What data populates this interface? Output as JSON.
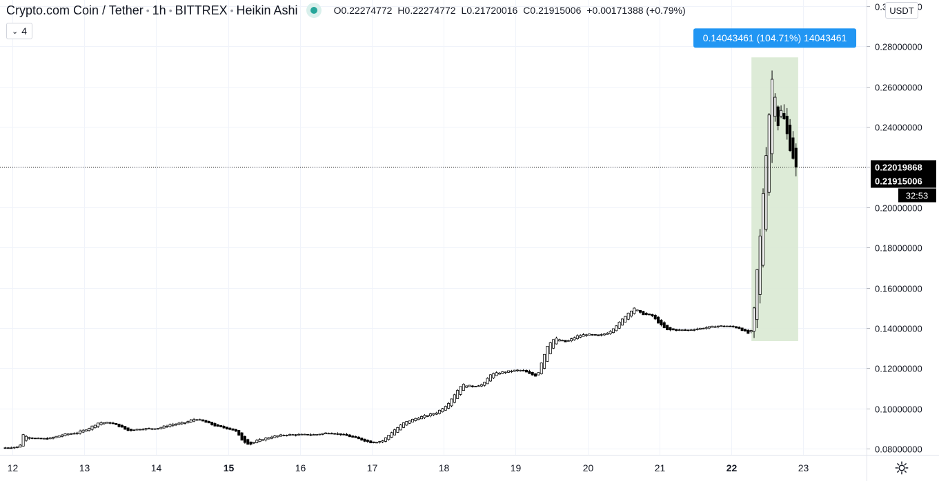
{
  "header": {
    "symbol": "Crypto.com Coin / Tether",
    "interval": "1h",
    "exchange": "BITTREX",
    "chart_style": "Heikin Ashi",
    "ohlc": {
      "o_label": "O",
      "o_value": "0.22274772",
      "h_label": "H",
      "h_value": "0.22274772",
      "l_label": "L",
      "l_value": "0.21720016",
      "c_label": "C",
      "c_value": "0.21915006",
      "change": "+0.00171388 (+0.79%)"
    },
    "status_color": "#26a69a"
  },
  "indicator_button": {
    "count": "4",
    "icon": "chevron-down-icon"
  },
  "currency_button": {
    "label": "USDT"
  },
  "settings": {
    "icon": "gear-icon"
  },
  "chart_data": {
    "type": "candlestick",
    "style": "heikin-ashi",
    "price_axis": {
      "range": [
        0.077,
        0.303
      ],
      "ticks": [
        "0.30000000",
        "0.28000000",
        "0.26000000",
        "0.24000000",
        "0.22000000",
        "0.20000000",
        "0.18000000",
        "0.16000000",
        "0.14000000",
        "0.12000000",
        "0.10000000",
        "0.08000000"
      ],
      "tick_values": [
        0.3,
        0.28,
        0.26,
        0.24,
        0.22,
        0.2,
        0.18,
        0.16,
        0.14,
        0.12,
        0.1,
        0.08
      ]
    },
    "time_axis": {
      "range_days": [
        11.9,
        23.7
      ],
      "ticks": [
        {
          "label": "12",
          "day": 12,
          "bold": false
        },
        {
          "label": "13",
          "day": 13,
          "bold": false
        },
        {
          "label": "14",
          "day": 14,
          "bold": false
        },
        {
          "label": "15",
          "day": 15,
          "bold": true
        },
        {
          "label": "16",
          "day": 16,
          "bold": false
        },
        {
          "label": "17",
          "day": 17,
          "bold": false
        },
        {
          "label": "18",
          "day": 18,
          "bold": false
        },
        {
          "label": "19",
          "day": 19,
          "bold": false
        },
        {
          "label": "20",
          "day": 20,
          "bold": false
        },
        {
          "label": "21",
          "day": 21,
          "bold": false
        },
        {
          "label": "22",
          "day": 22,
          "bold": true
        },
        {
          "label": "23",
          "day": 23,
          "bold": false
        }
      ]
    },
    "grid": true,
    "current_price": {
      "value": 0.21915006,
      "label": "0.21915006",
      "countdown": "32:53",
      "color": "#000000"
    },
    "crosshair_price": {
      "value": 0.22019868,
      "label": "0.22019868"
    },
    "measure": {
      "day_start": 22.28,
      "day_end": 22.93,
      "price_low": 0.1335,
      "price_high": 0.2745,
      "label": "0.14043461 (104.71%) 14043461",
      "fill": "#d9e9d3",
      "label_color": "#2196f3"
    },
    "price_path": [
      [
        11.9,
        0.0805
      ],
      [
        12.1,
        0.081
      ],
      [
        12.15,
        0.087
      ],
      [
        12.3,
        0.085
      ],
      [
        12.5,
        0.085
      ],
      [
        12.7,
        0.087
      ],
      [
        12.9,
        0.088
      ],
      [
        13.05,
        0.09
      ],
      [
        13.2,
        0.093
      ],
      [
        13.35,
        0.093
      ],
      [
        13.5,
        0.091
      ],
      [
        13.6,
        0.089
      ],
      [
        13.8,
        0.09
      ],
      [
        14.0,
        0.09
      ],
      [
        14.2,
        0.092
      ],
      [
        14.4,
        0.093
      ],
      [
        14.55,
        0.095
      ],
      [
        14.7,
        0.093
      ],
      [
        14.85,
        0.091
      ],
      [
        15.0,
        0.09
      ],
      [
        15.1,
        0.089
      ],
      [
        15.2,
        0.084
      ],
      [
        15.3,
        0.082
      ],
      [
        15.4,
        0.084
      ],
      [
        15.6,
        0.086
      ],
      [
        15.8,
        0.087
      ],
      [
        16.0,
        0.087
      ],
      [
        16.2,
        0.087
      ],
      [
        16.4,
        0.088
      ],
      [
        16.6,
        0.087
      ],
      [
        16.8,
        0.085
      ],
      [
        17.0,
        0.083
      ],
      [
        17.15,
        0.084
      ],
      [
        17.3,
        0.089
      ],
      [
        17.45,
        0.093
      ],
      [
        17.6,
        0.095
      ],
      [
        17.8,
        0.097
      ],
      [
        17.9,
        0.098
      ],
      [
        18.05,
        0.102
      ],
      [
        18.15,
        0.107
      ],
      [
        18.25,
        0.112
      ],
      [
        18.4,
        0.111
      ],
      [
        18.55,
        0.112
      ],
      [
        18.65,
        0.117
      ],
      [
        18.8,
        0.118
      ],
      [
        19.0,
        0.119
      ],
      [
        19.1,
        0.119
      ],
      [
        19.2,
        0.117
      ],
      [
        19.3,
        0.116
      ],
      [
        19.35,
        0.122
      ],
      [
        19.45,
        0.132
      ],
      [
        19.55,
        0.135
      ],
      [
        19.7,
        0.133
      ],
      [
        19.85,
        0.136
      ],
      [
        20.0,
        0.137
      ],
      [
        20.15,
        0.136
      ],
      [
        20.3,
        0.138
      ],
      [
        20.45,
        0.143
      ],
      [
        20.55,
        0.147
      ],
      [
        20.65,
        0.15
      ],
      [
        20.75,
        0.147
      ],
      [
        20.9,
        0.146
      ],
      [
        21.0,
        0.142
      ],
      [
        21.1,
        0.139
      ],
      [
        21.2,
        0.139
      ],
      [
        21.4,
        0.139
      ],
      [
        21.6,
        0.14
      ],
      [
        21.8,
        0.141
      ],
      [
        21.95,
        0.141
      ],
      [
        22.1,
        0.14
      ],
      [
        22.25,
        0.137
      ],
      [
        22.3,
        0.14
      ],
      [
        22.35,
        0.165
      ],
      [
        22.4,
        0.185
      ],
      [
        22.45,
        0.212
      ],
      [
        22.5,
        0.235
      ],
      [
        22.55,
        0.258
      ],
      [
        22.58,
        0.268
      ],
      [
        22.62,
        0.252
      ],
      [
        22.66,
        0.238
      ],
      [
        22.7,
        0.25
      ],
      [
        22.75,
        0.24
      ],
      [
        22.8,
        0.232
      ],
      [
        22.86,
        0.225
      ],
      [
        22.9,
        0.219
      ]
    ]
  }
}
